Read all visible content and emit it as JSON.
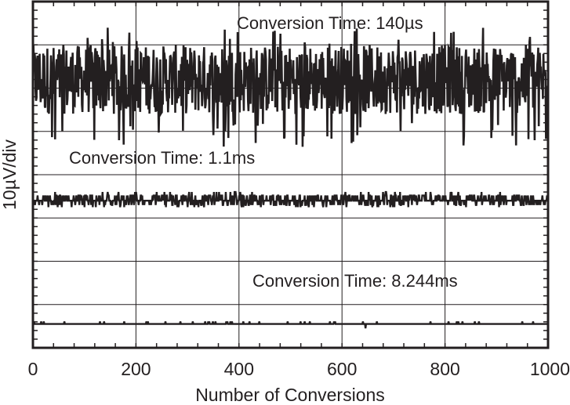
{
  "chart_data": {
    "type": "line",
    "title": "",
    "xlabel": "Number of Conversions",
    "ylabel": "10µV/div",
    "xlim": [
      0,
      1000
    ],
    "x_ticks": [
      "0",
      "200",
      "400",
      "600",
      "800",
      "1000"
    ],
    "x_tick_values": [
      0,
      200,
      400,
      600,
      800,
      1000
    ],
    "y_divisions": 8,
    "ylim_div": [
      0,
      8
    ],
    "grid": true,
    "legend": "none",
    "series": [
      {
        "label": "Conversion Time: 140µs",
        "baseline_div": 6.2,
        "noise_pp_div": 1.6,
        "spike_max_div": 1.2,
        "spike_min_div": -1.6,
        "points": 1000
      },
      {
        "label": "Conversion Time: 1.1ms",
        "baseline_div": 3.4,
        "noise_pp_div": 0.3,
        "points": 1000
      },
      {
        "label": "Conversion Time: 8.244ms",
        "baseline_div": 0.55,
        "noise_pp_div": 0.1,
        "points": 1000
      }
    ],
    "line_color": "#231f20"
  }
}
